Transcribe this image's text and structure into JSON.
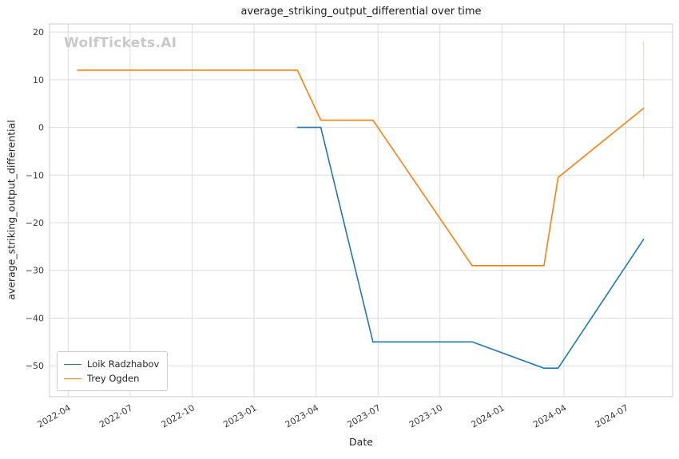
{
  "watermark": "WolfTickets.AI",
  "chart_data": {
    "type": "line",
    "title": "average_striking_output_differential over time",
    "xlabel": "Date",
    "ylabel": "average_striking_output_differential",
    "grid": true,
    "legend_position": "lower left",
    "x_tick_labels": [
      "2022-04",
      "2022-07",
      "2022-10",
      "2023-01",
      "2023-04",
      "2023-07",
      "2023-10",
      "2024-01",
      "2024-04",
      "2024-07"
    ],
    "y_ticks": [
      20,
      10,
      0,
      -10,
      -20,
      -30,
      -40,
      -50
    ],
    "xlim": [
      "2022-03-04",
      "2024-09-09"
    ],
    "ylim": [
      -56.5,
      21.7
    ],
    "axis_colors": {
      "grid": "#dcdcdc",
      "spine": "#cccccc",
      "tick_text": "#3a3a3a"
    },
    "series": [
      {
        "name": "Loik Radzhabov",
        "color": "#1f77b4",
        "points": [
          [
            "2023-03-04",
            0
          ],
          [
            "2023-04-08",
            0
          ],
          [
            "2023-06-24",
            -45
          ],
          [
            "2023-11-18",
            -45
          ],
          [
            "2024-03-02",
            -50.5
          ],
          [
            "2024-03-23",
            -50.5
          ],
          [
            "2024-07-27",
            -23.5
          ]
        ]
      },
      {
        "name": "Trey Ogden",
        "color": "#ff7f0e",
        "points": [
          [
            "2022-04-15",
            12
          ],
          [
            "2023-03-04",
            12
          ],
          [
            "2023-04-08",
            1.5
          ],
          [
            "2023-06-24",
            1.5
          ],
          [
            "2023-11-18",
            -29
          ],
          [
            "2024-03-02",
            -29
          ],
          [
            "2024-03-23",
            -10.5
          ],
          [
            "2024-07-27",
            4
          ]
        ],
        "error_bar": {
          "x": "2024-07-27",
          "y_low": -10.5,
          "y_high": 18
        }
      }
    ]
  }
}
